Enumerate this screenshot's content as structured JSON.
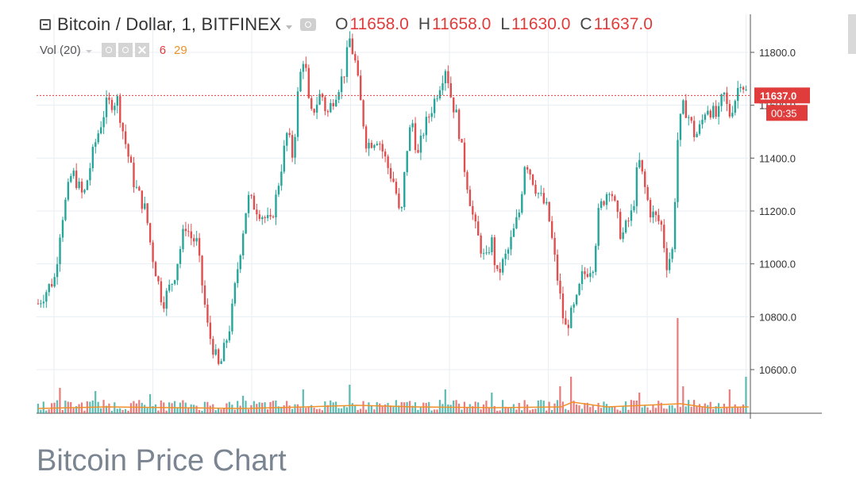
{
  "header": {
    "title": "Bitcoin / Dollar, 1, BITFINEX",
    "open_label": "O",
    "open": "11658.0",
    "high_label": "H",
    "high": "11658.0",
    "low_label": "L",
    "low": "11630.0",
    "close_label": "C",
    "close": "11637.0"
  },
  "volume_indicator": {
    "label": "Vol (20)",
    "value_a": "6",
    "value_b": "29"
  },
  "caption": "Bitcoin Price Chart",
  "colors": {
    "up": "#26a69a",
    "down": "#e04f4f",
    "price_tag": "#e03c3c",
    "ma": "#f0922b"
  },
  "chart_data": {
    "type": "candlestick",
    "title": "Bitcoin / Dollar, 1, BITFINEX",
    "xlabel": "",
    "ylabel": "",
    "ylim": [
      10450,
      11950
    ],
    "y_ticks": [
      "11800.0",
      "11600.0",
      "11400.0",
      "11200.0",
      "11000.0",
      "10800.0",
      "10600.0"
    ],
    "y_tick_values": [
      11800,
      11600,
      11400,
      11200,
      11000,
      10800,
      10600
    ],
    "current_price": "11637.0",
    "current_price_value": 11637,
    "countdown": "00:35",
    "grid": true,
    "price_path": [
      [
        0,
        10850
      ],
      [
        3,
        10950
      ],
      [
        4,
        11150
      ],
      [
        6,
        11350
      ],
      [
        8,
        11250
      ],
      [
        10,
        11450
      ],
      [
        12,
        11600
      ],
      [
        14,
        11620
      ],
      [
        15,
        11500
      ],
      [
        17,
        11300
      ],
      [
        19,
        11200
      ],
      [
        20,
        11050
      ],
      [
        22,
        10850
      ],
      [
        24,
        10950
      ],
      [
        26,
        11150
      ],
      [
        27,
        11100
      ],
      [
        28,
        11080
      ],
      [
        30,
        10750
      ],
      [
        32,
        10600
      ],
      [
        34,
        10780
      ],
      [
        35,
        10950
      ],
      [
        37,
        11250
      ],
      [
        39,
        11200
      ],
      [
        41,
        11150
      ],
      [
        42,
        11250
      ],
      [
        44,
        11500
      ],
      [
        45,
        11400
      ],
      [
        46,
        11680
      ],
      [
        47,
        11800
      ],
      [
        48,
        11550
      ],
      [
        50,
        11650
      ],
      [
        51,
        11560
      ],
      [
        52,
        11620
      ],
      [
        54,
        11720
      ],
      [
        55,
        11850
      ],
      [
        56,
        11760
      ],
      [
        57,
        11600
      ],
      [
        58,
        11450
      ],
      [
        60,
        11480
      ],
      [
        62,
        11350
      ],
      [
        63,
        11300
      ],
      [
        64,
        11150
      ],
      [
        65,
        11420
      ],
      [
        66,
        11550
      ],
      [
        67,
        11400
      ],
      [
        68,
        11500
      ],
      [
        70,
        11620
      ],
      [
        72,
        11750
      ],
      [
        73,
        11620
      ],
      [
        74,
        11550
      ],
      [
        75,
        11400
      ],
      [
        77,
        11150
      ],
      [
        79,
        11000
      ],
      [
        80,
        11100
      ],
      [
        81,
        10950
      ],
      [
        83,
        11050
      ],
      [
        85,
        11200
      ],
      [
        86,
        11400
      ],
      [
        88,
        11280
      ],
      [
        90,
        11200
      ],
      [
        92,
        10900
      ],
      [
        93,
        10750
      ],
      [
        95,
        10850
      ],
      [
        96,
        10950
      ],
      [
        98,
        11000
      ],
      [
        99,
        11200
      ],
      [
        101,
        11300
      ],
      [
        102,
        11200
      ],
      [
        103,
        11100
      ],
      [
        105,
        11200
      ],
      [
        106,
        11400
      ],
      [
        107,
        11300
      ],
      [
        108,
        11200
      ],
      [
        110,
        11150
      ],
      [
        111,
        11000
      ],
      [
        112,
        11050
      ],
      [
        113,
        11500
      ],
      [
        114,
        11600
      ],
      [
        115,
        11550
      ],
      [
        116,
        11480
      ],
      [
        117,
        11520
      ],
      [
        118,
        11600
      ],
      [
        120,
        11550
      ],
      [
        121,
        11650
      ],
      [
        122,
        11560
      ],
      [
        123,
        11620
      ],
      [
        124,
        11700
      ],
      [
        125,
        11650
      ]
    ],
    "volume_spikes": [
      [
        4,
        32
      ],
      [
        10,
        28
      ],
      [
        20,
        24
      ],
      [
        36,
        22
      ],
      [
        47,
        30
      ],
      [
        55,
        36
      ],
      [
        72,
        30
      ],
      [
        80,
        26
      ],
      [
        92,
        34
      ],
      [
        94,
        46
      ],
      [
        106,
        26
      ],
      [
        113,
        120
      ],
      [
        114,
        34
      ],
      [
        122,
        30
      ],
      [
        125,
        46
      ]
    ],
    "ma_path": [
      [
        0,
        6
      ],
      [
        12,
        8
      ],
      [
        24,
        7
      ],
      [
        36,
        6
      ],
      [
        47,
        8
      ],
      [
        56,
        10
      ],
      [
        66,
        8
      ],
      [
        80,
        7
      ],
      [
        92,
        8
      ],
      [
        94,
        14
      ],
      [
        100,
        8
      ],
      [
        113,
        12
      ],
      [
        118,
        7
      ],
      [
        125,
        8
      ]
    ]
  }
}
